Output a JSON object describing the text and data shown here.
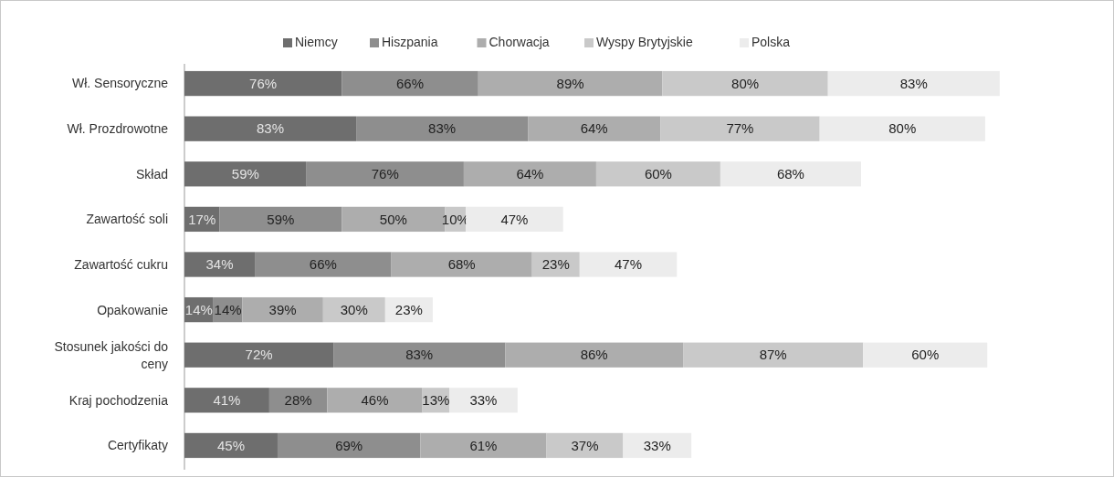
{
  "chart_data": {
    "type": "bar",
    "orientation": "horizontal",
    "stacked": true,
    "legend": "top",
    "categories": [
      "Wł. Sensoryczne",
      "Wł. Prozdrowotne",
      "Skład",
      "Zawartość soli",
      "Zawartość cukru",
      "Opakowanie",
      "Stosunek jakości do ceny",
      "Kraj pochodzenia",
      "Certyfikaty"
    ],
    "series": [
      {
        "name": "Niemcy",
        "color": "#6e6e6e",
        "values": [
          76,
          83,
          59,
          17,
          34,
          14,
          72,
          41,
          45
        ],
        "value_labels": [
          "76%",
          "83%",
          "59%",
          "17%",
          "34%",
          "14%",
          "72%",
          "41%",
          "45%"
        ]
      },
      {
        "name": "Hiszpania",
        "color": "#8e8e8e",
        "values": [
          66,
          83,
          76,
          59,
          66,
          14,
          83,
          28,
          69
        ],
        "value_labels": [
          "66%",
          "83%",
          "76%",
          "59%",
          "66%",
          "14%",
          "83%",
          "28%",
          "69%"
        ]
      },
      {
        "name": "Chorwacja",
        "color": "#adadad",
        "values": [
          89,
          64,
          64,
          50,
          68,
          39,
          86,
          46,
          61
        ],
        "value_labels": [
          "89%",
          "64%",
          "64%",
          "50%",
          "68%",
          "39%",
          "86%",
          "46%",
          "61%"
        ]
      },
      {
        "name": "Wyspy Brytyjskie",
        "color": "#c9c9c9",
        "values": [
          80,
          77,
          60,
          10,
          23,
          30,
          87,
          13,
          37
        ],
        "value_labels": [
          "80%",
          "77%",
          "60%",
          "10%",
          "23%",
          "30%",
          "87%",
          "13%",
          "37%"
        ]
      },
      {
        "name": "Polska",
        "color": "#ececec",
        "values": [
          83,
          80,
          68,
          47,
          47,
          23,
          60,
          33,
          33
        ],
        "value_labels": [
          "83%",
          "80%",
          "68%",
          "47%",
          "47%",
          "23%",
          "60%",
          "33%",
          "33%"
        ]
      }
    ]
  }
}
